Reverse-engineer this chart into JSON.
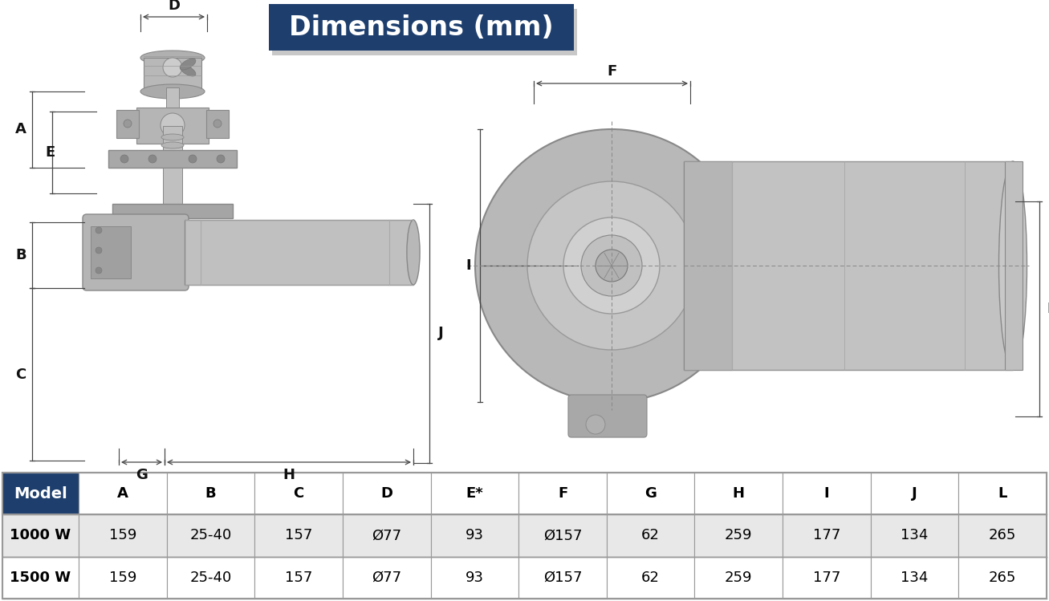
{
  "title": "Dimensions (mm)",
  "title_bg_color": "#1e3f6e",
  "title_text_color": "#ffffff",
  "bg_color": "#ffffff",
  "table_headers": [
    "Model",
    "A",
    "B",
    "C",
    "D",
    "E*",
    "F",
    "G",
    "H",
    "I",
    "J",
    "L"
  ],
  "table_rows": [
    [
      "1000 W",
      "159",
      "25-40",
      "157",
      "Ø77",
      "93",
      "Ø157",
      "62",
      "259",
      "177",
      "134",
      "265"
    ],
    [
      "1500 W",
      "159",
      "25-40",
      "157",
      "Ø77",
      "93",
      "Ø157",
      "62",
      "259",
      "177",
      "134",
      "265"
    ]
  ],
  "header_bg_color": "#1e3f6e",
  "header_text_color": "#ffffff",
  "row_bg_colors": [
    "#e8e8e8",
    "#ffffff"
  ],
  "row_text_color": "#000000",
  "border_color": "#999999",
  "dim_line_color": "#444444",
  "annotation_color": "#111111",
  "shadow_color": "#c8c8c8",
  "product_gray": "#c0c0c0",
  "product_dark": "#909090",
  "product_light": "#d8d8d8"
}
